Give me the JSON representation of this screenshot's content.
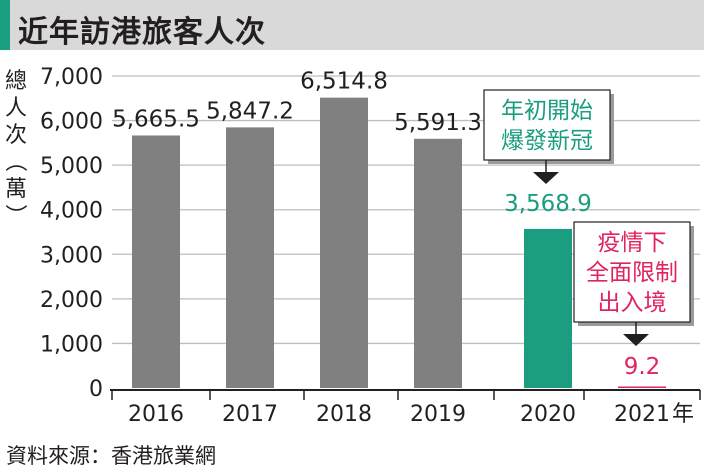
{
  "title": "近年訪港旅客人次",
  "source": "資料來源：香港旅業網",
  "chart_data": {
    "type": "bar",
    "categories": [
      "2016",
      "2017",
      "2018",
      "2019",
      "2020",
      "2021"
    ],
    "values": [
      5665.5,
      5847.2,
      6514.8,
      5591.3,
      3568.9,
      9.2
    ],
    "value_labels": [
      "5,665.5",
      "5,847.2",
      "6,514.8",
      "5,591.3",
      "3,568.9",
      "9.2"
    ],
    "ylabel": "總人次（萬）",
    "x_unit": "年",
    "ylim": [
      0,
      7000
    ],
    "yticks": [
      0,
      1000,
      2000,
      3000,
      4000,
      5000,
      6000,
      7000
    ],
    "ytick_labels": [
      "0",
      "1,000",
      "2,000",
      "3,000",
      "4,000",
      "5,000",
      "6,000",
      "7,000"
    ],
    "grid": true,
    "colors": {
      "default_bar": "#808080",
      "bar_2020": "#1a9e7f",
      "bar_2021": "#e0245e",
      "grid": "#bcbec0",
      "title_bg": "#d9d9d9",
      "title_accent": "#1a9e7f"
    },
    "annotations": [
      {
        "target": "2020",
        "lines": [
          "年初開始",
          "爆發新冠"
        ],
        "color": "#1a9e7f"
      },
      {
        "target": "2021",
        "lines": [
          "疫情下",
          "全面限制",
          "出入境"
        ],
        "color": "#e0245e"
      }
    ]
  }
}
